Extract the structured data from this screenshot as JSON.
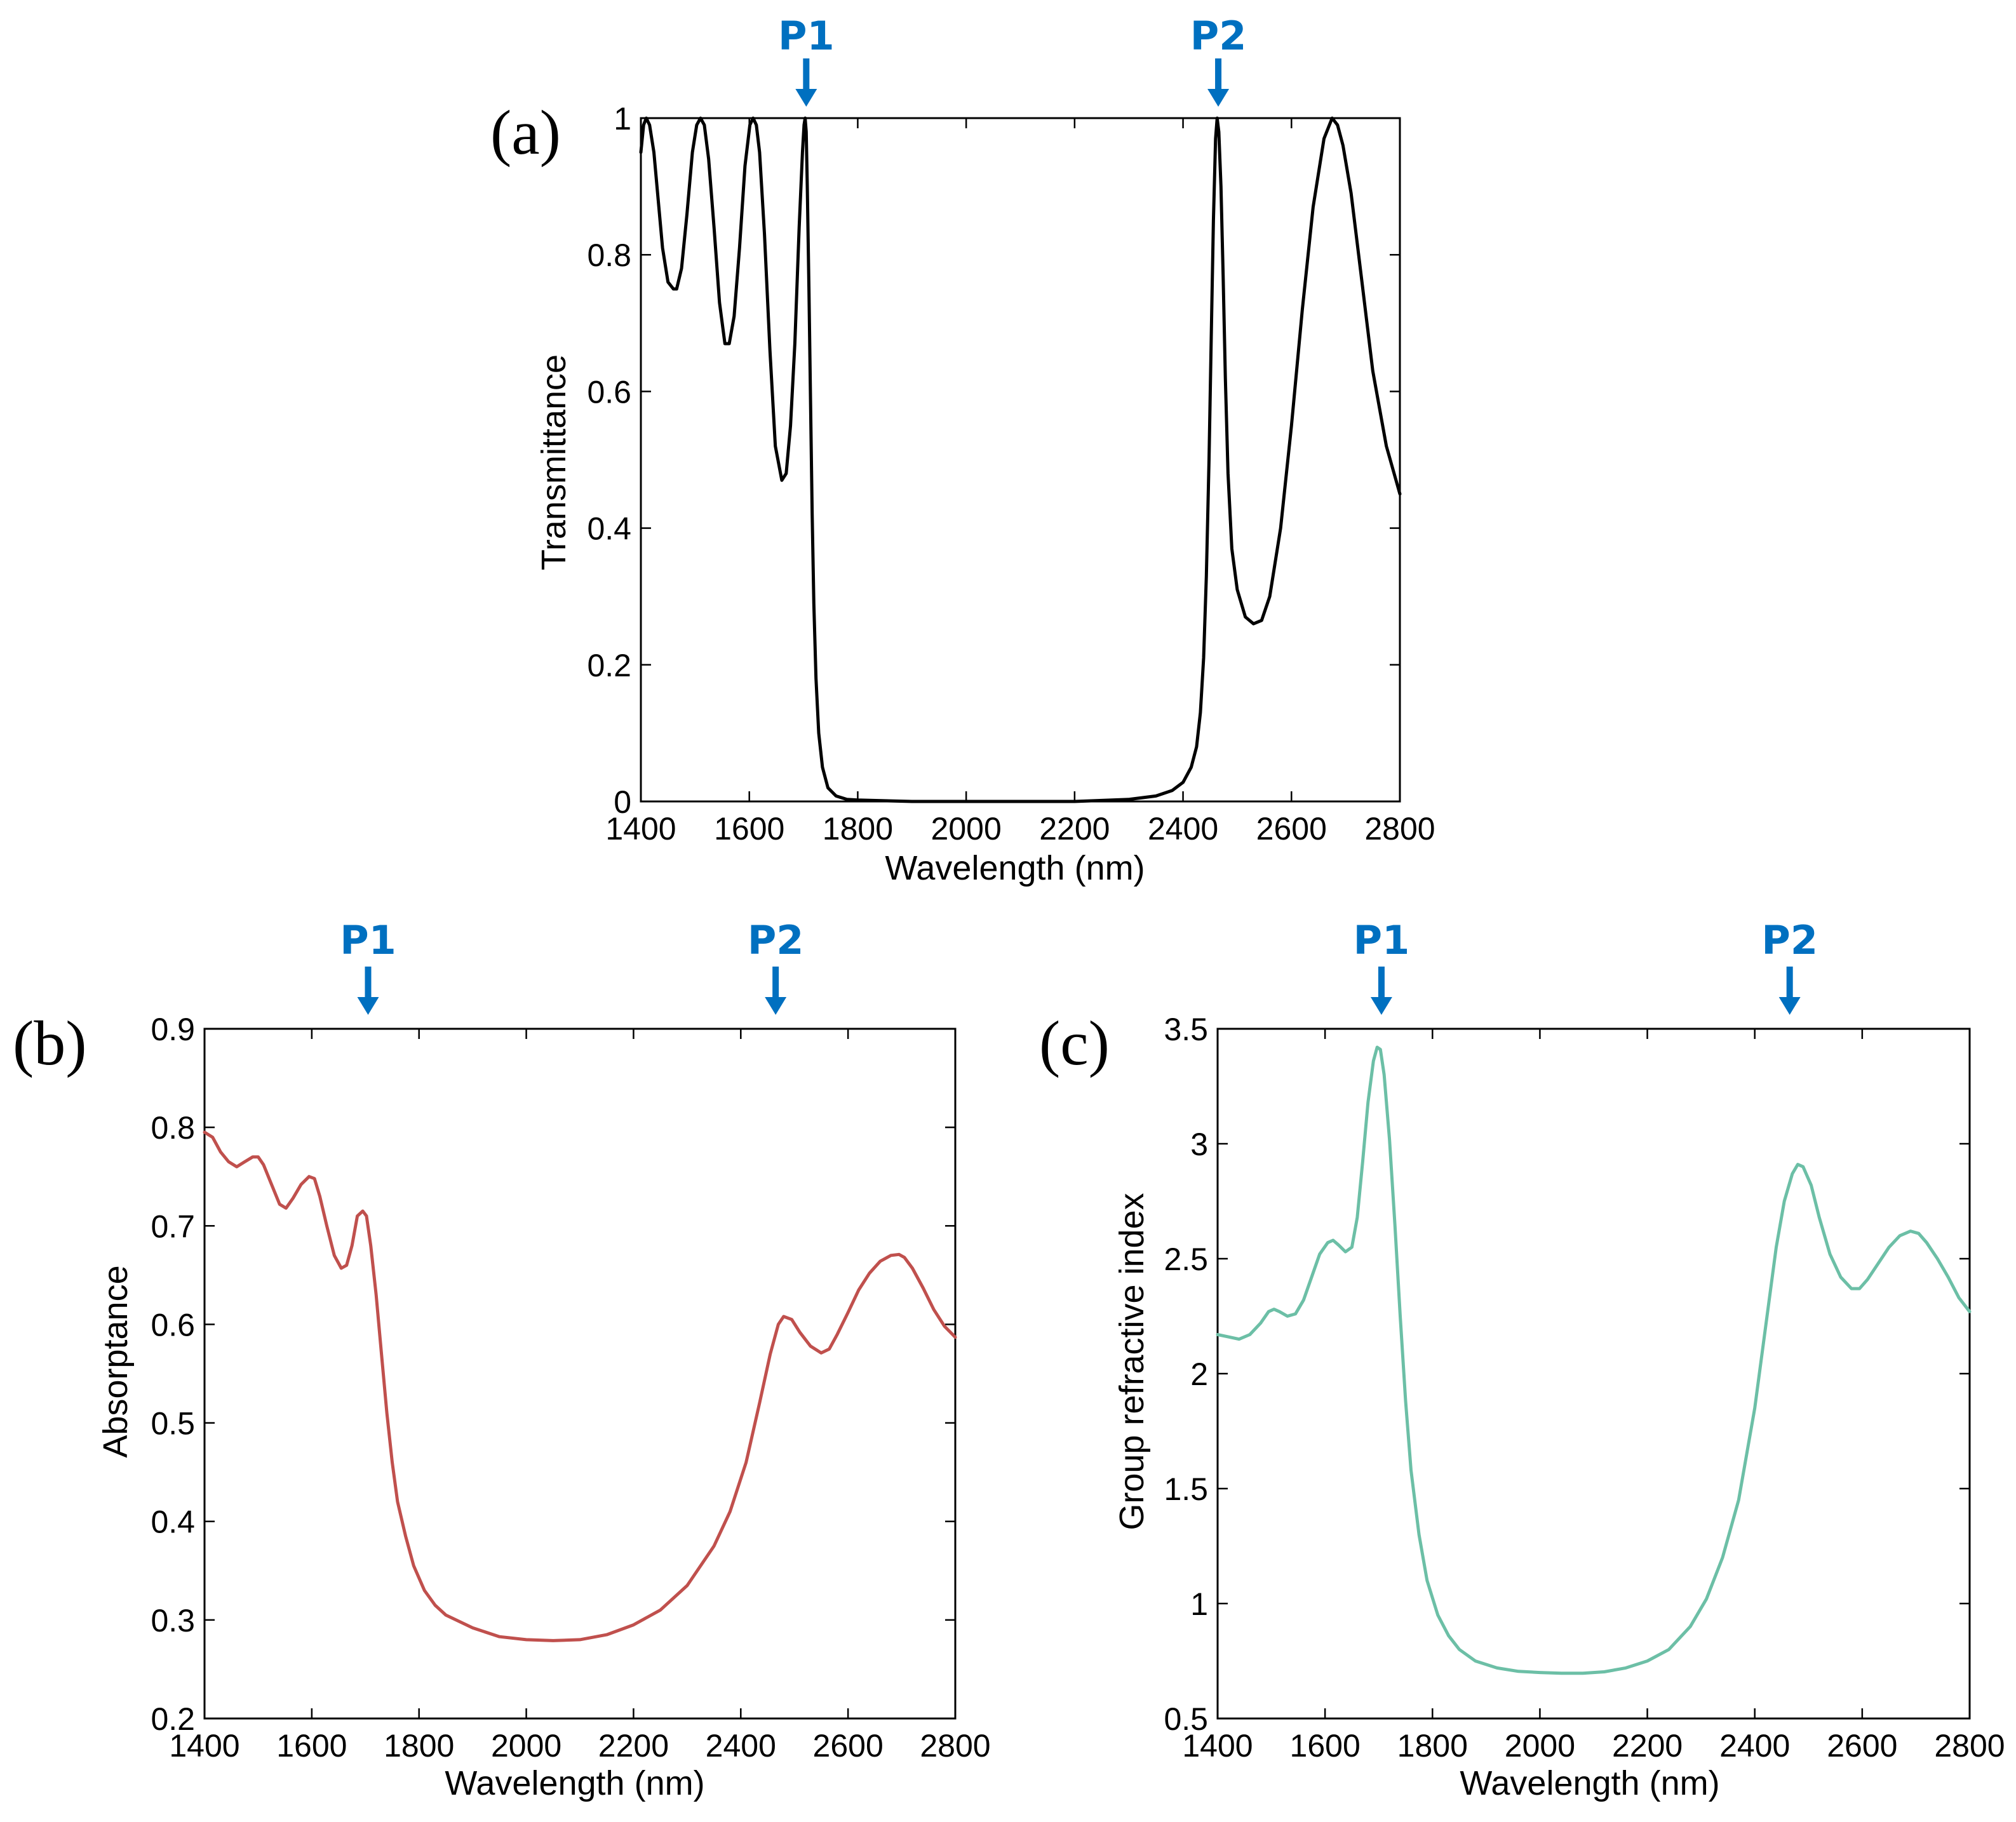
{
  "chart_data": [
    {
      "id": "a",
      "type": "line",
      "panel_label": "(a)",
      "xlabel": "Wavelength (nm)",
      "ylabel": "Transmittance",
      "xlim": [
        1400,
        2800
      ],
      "ylim": [
        0,
        1
      ],
      "xticks": [
        1400,
        1600,
        1800,
        2000,
        2200,
        2400,
        2600,
        2800
      ],
      "yticks": [
        0,
        0.2,
        0.4,
        0.6,
        0.8,
        1
      ],
      "ytick_labels": [
        "0",
        "0.2",
        "0.4",
        "0.6",
        "0.8",
        "1"
      ],
      "line_color": "#000000",
      "markers": [
        {
          "label": "P1",
          "x": 1705
        },
        {
          "label": "P2",
          "x": 2465
        }
      ],
      "series": [
        {
          "name": "Transmittance",
          "x": [
            1400,
            1405,
            1410,
            1416,
            1424,
            1432,
            1440,
            1450,
            1460,
            1466,
            1475,
            1485,
            1495,
            1503,
            1510,
            1517,
            1525,
            1535,
            1545,
            1555,
            1563,
            1572,
            1582,
            1592,
            1601,
            1607,
            1613,
            1619,
            1628,
            1638,
            1648,
            1660,
            1668,
            1676,
            1684,
            1692,
            1698,
            1701,
            1703,
            1705,
            1707,
            1710,
            1713,
            1716,
            1719,
            1723,
            1728,
            1735,
            1745,
            1760,
            1780,
            1800,
            1850,
            1900,
            2000,
            2100,
            2200,
            2300,
            2350,
            2380,
            2400,
            2415,
            2425,
            2432,
            2438,
            2443,
            2448,
            2452,
            2456,
            2460,
            2463,
            2466,
            2470,
            2474,
            2478,
            2483,
            2490,
            2500,
            2515,
            2530,
            2545,
            2560,
            2580,
            2600,
            2620,
            2640,
            2660,
            2675,
            2685,
            2695,
            2710,
            2730,
            2750,
            2775,
            2800
          ],
          "y": [
            0.95,
            0.99,
            1.0,
            0.99,
            0.95,
            0.88,
            0.81,
            0.76,
            0.75,
            0.75,
            0.78,
            0.86,
            0.95,
            0.99,
            1.0,
            0.99,
            0.94,
            0.84,
            0.73,
            0.67,
            0.67,
            0.71,
            0.81,
            0.93,
            0.99,
            1.0,
            0.99,
            0.95,
            0.83,
            0.66,
            0.52,
            0.47,
            0.48,
            0.55,
            0.67,
            0.84,
            0.95,
            0.99,
            1.0,
            0.98,
            0.9,
            0.75,
            0.58,
            0.42,
            0.29,
            0.18,
            0.1,
            0.05,
            0.02,
            0.008,
            0.003,
            0.002,
            0.001,
            0.0,
            0.0,
            0.0,
            0.0,
            0.003,
            0.008,
            0.016,
            0.028,
            0.05,
            0.08,
            0.13,
            0.21,
            0.33,
            0.5,
            0.68,
            0.85,
            0.97,
            1.0,
            0.98,
            0.9,
            0.77,
            0.62,
            0.48,
            0.37,
            0.31,
            0.27,
            0.26,
            0.265,
            0.3,
            0.4,
            0.55,
            0.72,
            0.87,
            0.97,
            1.0,
            0.99,
            0.96,
            0.89,
            0.76,
            0.63,
            0.52,
            0.45
          ]
        }
      ]
    },
    {
      "id": "b",
      "type": "line",
      "panel_label": "(b)",
      "xlabel": "Wavelength (nm)",
      "ylabel": "Absorptance",
      "xlim": [
        1400,
        2800
      ],
      "ylim": [
        0.2,
        0.9
      ],
      "xticks": [
        1400,
        1600,
        1800,
        2000,
        2200,
        2400,
        2600,
        2800
      ],
      "yticks": [
        0.2,
        0.3,
        0.4,
        0.5,
        0.6,
        0.7,
        0.8,
        0.9
      ],
      "ytick_labels": [
        "0.2",
        "0.3",
        "0.4",
        "0.5",
        "0.6",
        "0.7",
        "0.8",
        "0.9"
      ],
      "line_color": "#c0504d",
      "markers": [
        {
          "label": "P1",
          "x": 1705
        },
        {
          "label": "P2",
          "x": 2465
        }
      ],
      "series": [
        {
          "name": "Absorptance",
          "x": [
            1400,
            1415,
            1430,
            1445,
            1460,
            1475,
            1490,
            1500,
            1510,
            1525,
            1540,
            1552,
            1565,
            1580,
            1595,
            1605,
            1615,
            1628,
            1642,
            1655,
            1665,
            1675,
            1685,
            1695,
            1702,
            1710,
            1720,
            1730,
            1740,
            1750,
            1760,
            1775,
            1790,
            1810,
            1830,
            1850,
            1900,
            1950,
            2000,
            2050,
            2100,
            2150,
            2200,
            2250,
            2300,
            2350,
            2380,
            2410,
            2435,
            2455,
            2470,
            2480,
            2495,
            2510,
            2530,
            2550,
            2565,
            2580,
            2600,
            2620,
            2640,
            2660,
            2680,
            2695,
            2705,
            2720,
            2740,
            2760,
            2780,
            2800
          ],
          "y": [
            0.795,
            0.79,
            0.775,
            0.765,
            0.76,
            0.765,
            0.77,
            0.77,
            0.762,
            0.742,
            0.722,
            0.718,
            0.728,
            0.742,
            0.75,
            0.748,
            0.73,
            0.7,
            0.67,
            0.657,
            0.66,
            0.68,
            0.71,
            0.715,
            0.71,
            0.68,
            0.63,
            0.57,
            0.51,
            0.46,
            0.42,
            0.385,
            0.355,
            0.33,
            0.315,
            0.305,
            0.292,
            0.283,
            0.28,
            0.279,
            0.28,
            0.285,
            0.295,
            0.31,
            0.335,
            0.375,
            0.41,
            0.46,
            0.52,
            0.57,
            0.6,
            0.608,
            0.605,
            0.592,
            0.578,
            0.571,
            0.575,
            0.59,
            0.612,
            0.635,
            0.652,
            0.664,
            0.67,
            0.671,
            0.668,
            0.657,
            0.637,
            0.615,
            0.598,
            0.587
          ]
        }
      ]
    },
    {
      "id": "c",
      "type": "line",
      "panel_label": "(c)",
      "xlabel": "Wavelength (nm)",
      "ylabel": "Group refractive index",
      "xlim": [
        1400,
        2800
      ],
      "ylim": [
        0.5,
        3.5
      ],
      "xticks": [
        1400,
        1600,
        1800,
        2000,
        2200,
        2400,
        2600,
        2800
      ],
      "yticks": [
        0.5,
        1,
        1.5,
        2,
        2.5,
        3,
        3.5
      ],
      "ytick_labels": [
        "0.5",
        "1",
        "1.5",
        "2",
        "2.5",
        "3",
        "3.5"
      ],
      "line_color": "#6cbfa6",
      "markers": [
        {
          "label": "P1",
          "x": 1705
        },
        {
          "label": "P2",
          "x": 2465
        }
      ],
      "series": [
        {
          "name": "Group refractive index",
          "x": [
            1400,
            1420,
            1440,
            1460,
            1480,
            1495,
            1505,
            1515,
            1530,
            1545,
            1560,
            1575,
            1590,
            1605,
            1615,
            1625,
            1638,
            1650,
            1660,
            1670,
            1680,
            1690,
            1697,
            1703,
            1710,
            1720,
            1730,
            1740,
            1750,
            1760,
            1775,
            1790,
            1810,
            1830,
            1850,
            1880,
            1920,
            1960,
            2000,
            2040,
            2080,
            2120,
            2160,
            2200,
            2240,
            2280,
            2310,
            2340,
            2370,
            2400,
            2420,
            2440,
            2455,
            2470,
            2480,
            2490,
            2505,
            2520,
            2540,
            2560,
            2580,
            2595,
            2610,
            2630,
            2650,
            2670,
            2690,
            2705,
            2720,
            2740,
            2760,
            2780,
            2800
          ],
          "y": [
            2.17,
            2.16,
            2.15,
            2.17,
            2.22,
            2.27,
            2.28,
            2.27,
            2.25,
            2.26,
            2.32,
            2.42,
            2.52,
            2.57,
            2.58,
            2.56,
            2.53,
            2.55,
            2.68,
            2.92,
            3.18,
            3.36,
            3.42,
            3.41,
            3.3,
            3.02,
            2.65,
            2.25,
            1.88,
            1.58,
            1.3,
            1.1,
            0.95,
            0.86,
            0.8,
            0.75,
            0.72,
            0.705,
            0.7,
            0.697,
            0.697,
            0.703,
            0.72,
            0.75,
            0.8,
            0.9,
            1.02,
            1.2,
            1.45,
            1.85,
            2.2,
            2.55,
            2.75,
            2.87,
            2.91,
            2.9,
            2.82,
            2.68,
            2.52,
            2.42,
            2.37,
            2.37,
            2.41,
            2.48,
            2.55,
            2.6,
            2.62,
            2.61,
            2.57,
            2.5,
            2.42,
            2.33,
            2.27
          ]
        }
      ]
    }
  ]
}
